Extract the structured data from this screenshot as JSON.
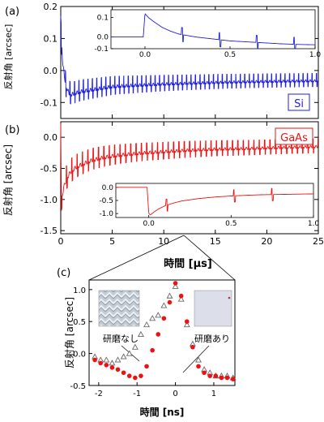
{
  "chart_data": [
    {
      "panel_label": "(a)",
      "type": "line",
      "ylabel": "反射角 [arcsec]",
      "ylim": [
        -0.15,
        0.2
      ],
      "yticks": [
        "0.2",
        "0.1",
        "0.0",
        "-0.1"
      ],
      "xlim": [
        0,
        25
      ],
      "legend": "Si",
      "legend_color": "#1f1fe0",
      "series": [
        {
          "color": "#1f1fe0",
          "x": [
            0,
            0.2,
            0.5,
            0.8,
            1,
            1.5,
            2,
            3,
            4,
            5,
            6,
            8,
            10,
            12,
            15,
            18,
            20,
            22,
            25
          ],
          "y": [
            0.13,
            0.02,
            -0.05,
            -0.07,
            -0.075,
            -0.07,
            -0.065,
            -0.06,
            -0.055,
            -0.05,
            -0.048,
            -0.045,
            -0.042,
            -0.04,
            -0.037,
            -0.035,
            -0.034,
            -0.033,
            -0.032
          ],
          "spike_period_us": 0.435,
          "spike_amplitude": 0.04
        }
      ],
      "inset": {
        "xlim": [
          -0.2,
          1.0
        ],
        "xticks": [
          "0.0",
          "0.5",
          "1.0"
        ],
        "ylim": [
          -0.06,
          0.14
        ],
        "yticks": [
          "0.1",
          "0.0",
          "-0.1"
        ],
        "x": [
          -0.2,
          -0.01,
          0.0,
          0.02,
          0.05,
          0.1,
          0.15,
          0.2,
          0.3,
          0.4,
          0.5,
          0.6,
          0.7,
          0.8,
          0.9,
          1.0
        ],
        "y": [
          0.0,
          0.0,
          0.12,
          0.1,
          0.08,
          0.05,
          0.03,
          0.015,
          0.0,
          -0.01,
          -0.02,
          -0.025,
          -0.03,
          -0.035,
          -0.038,
          -0.04
        ],
        "spikes_x": [
          0.22,
          0.44,
          0.66,
          0.88
        ]
      }
    },
    {
      "panel_label": "(b)",
      "type": "line",
      "ylabel": "反射角 [arcsec]",
      "xlabel": "時間 [μs]",
      "ylim": [
        -1.55,
        0.25
      ],
      "yticks": [
        "0.0",
        "-0.5",
        "-1.0",
        "-1.5"
      ],
      "xlim": [
        0,
        25
      ],
      "xticks": [
        "0",
        "5",
        "10",
        "15",
        "20",
        "25"
      ],
      "legend": "GaAs",
      "legend_color": "#ee1111",
      "series": [
        {
          "color": "#ee1111",
          "x": [
            0,
            0.05,
            0.3,
            0.6,
            1,
            1.5,
            2,
            3,
            4,
            5,
            6,
            8,
            10,
            12,
            15,
            18,
            20,
            22,
            25
          ],
          "y": [
            0.0,
            -1.02,
            -0.8,
            -0.65,
            -0.55,
            -0.48,
            -0.44,
            -0.37,
            -0.33,
            -0.3,
            -0.28,
            -0.25,
            -0.23,
            -0.21,
            -0.19,
            -0.18,
            -0.17,
            -0.16,
            -0.15
          ],
          "spike_period_us": 0.52,
          "spike_amplitude": 0.22
        }
      ],
      "inset": {
        "xlim": [
          -0.2,
          1.0
        ],
        "xticks": [
          "0.0",
          "0.5",
          "1.0"
        ],
        "ylim": [
          -1.15,
          0.15
        ],
        "yticks": [
          "0.0",
          "-0.5",
          "-1.0"
        ],
        "x": [
          -0.2,
          -0.01,
          0.0,
          0.01,
          0.03,
          0.06,
          0.1,
          0.15,
          0.2,
          0.3,
          0.4,
          0.5,
          0.6,
          0.7,
          0.8,
          0.9,
          1.0
        ],
        "y": [
          0.0,
          0.0,
          -1.0,
          -1.05,
          -0.95,
          -0.82,
          -0.7,
          -0.6,
          -0.52,
          -0.43,
          -0.37,
          -0.33,
          -0.3,
          -0.28,
          -0.27,
          -0.26,
          -0.25
        ],
        "spikes_x": [
          0.11,
          0.52,
          0.75
        ]
      }
    },
    {
      "panel_label": "(c)",
      "type": "scatter",
      "ylabel": "反射角 [arcsec]",
      "xlabel": "時間 [ns]",
      "xlim": [
        -2.25,
        1.55
      ],
      "xticks": [
        "-2",
        "-1",
        "0",
        "1"
      ],
      "ylim": [
        -0.5,
        1.15
      ],
      "yticks": [
        "1.0",
        "0.5",
        "0.0",
        "-0.5"
      ],
      "image_labels": [
        "研磨なし",
        "研磨あり"
      ],
      "series": [
        {
          "name": "研磨なし",
          "marker": "triangle-open",
          "color": "#666666",
          "x": [
            -2.1,
            -1.95,
            -1.8,
            -1.65,
            -1.5,
            -1.35,
            -1.2,
            -1.05,
            -0.9,
            -0.75,
            -0.6,
            -0.45,
            -0.3,
            -0.15,
            0.0,
            0.15,
            0.3,
            0.45,
            0.6,
            0.75,
            0.9,
            1.05,
            1.2,
            1.35,
            1.5
          ],
          "y": [
            -0.05,
            -0.1,
            -0.1,
            -0.15,
            -0.1,
            -0.05,
            0.0,
            0.1,
            0.3,
            0.45,
            0.55,
            0.6,
            0.75,
            0.9,
            1.05,
            0.85,
            0.45,
            0.15,
            -0.1,
            -0.25,
            -0.3,
            -0.35,
            -0.35,
            -0.35,
            -0.38
          ]
        },
        {
          "name": "研磨あり",
          "marker": "circle-filled",
          "color": "#ee1111",
          "x": [
            -2.1,
            -1.95,
            -1.8,
            -1.65,
            -1.5,
            -1.35,
            -1.2,
            -1.05,
            -0.9,
            -0.75,
            -0.6,
            -0.45,
            -0.3,
            -0.15,
            0.0,
            0.15,
            0.3,
            0.45,
            0.6,
            0.75,
            0.9,
            1.05,
            1.2,
            1.35,
            1.5
          ],
          "y": [
            -0.1,
            -0.15,
            -0.18,
            -0.22,
            -0.25,
            -0.3,
            -0.35,
            -0.38,
            -0.35,
            -0.2,
            0.05,
            0.3,
            0.55,
            0.8,
            1.1,
            0.9,
            0.5,
            0.1,
            -0.2,
            -0.3,
            -0.35,
            -0.35,
            -0.38,
            -0.38,
            -0.4
          ]
        }
      ]
    }
  ]
}
